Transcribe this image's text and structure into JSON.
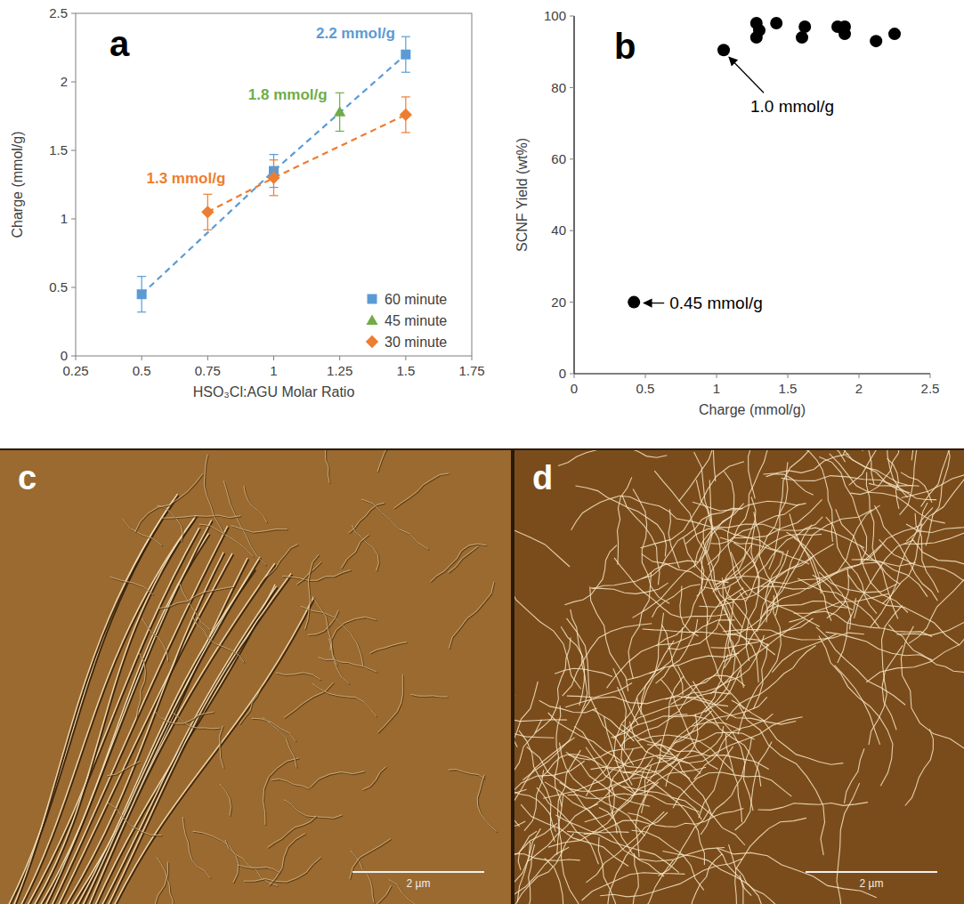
{
  "chart_data": [
    {
      "type": "scatter",
      "panel": "a",
      "xlabel": "HSO₃Cl:AGU Molar Ratio",
      "ylabel": "Charge (mmol/g)",
      "xlim": [
        0.25,
        1.75
      ],
      "xticks": [
        0.25,
        0.5,
        0.75,
        1,
        1.25,
        1.5,
        1.75
      ],
      "ylim": [
        0,
        2.5
      ],
      "yticks": [
        0,
        0.5,
        1,
        1.5,
        2,
        2.5
      ],
      "grid": false,
      "legend": "lower right",
      "series": [
        {
          "name": "60 minute",
          "color": "#5b9bd5",
          "marker": "square",
          "line_style": "dashed",
          "x": [
            0.5,
            1,
            1.5
          ],
          "values": [
            0.45,
            1.35,
            2.2
          ],
          "errors": [
            0.13,
            0.12,
            0.13
          ],
          "annotation": "2.2 mmol/g"
        },
        {
          "name": "45 minute",
          "color": "#70ad47",
          "marker": "triangle",
          "line_style": "none",
          "x": [
            1.25
          ],
          "values": [
            1.78
          ],
          "errors": [
            0.14
          ],
          "annotation": "1.8 mmol/g"
        },
        {
          "name": "30 minute",
          "color": "#ed7d31",
          "marker": "diamond",
          "line_style": "dashed",
          "x": [
            0.75,
            1,
            1.5
          ],
          "values": [
            1.05,
            1.3,
            1.76
          ],
          "errors": [
            0.13,
            0.13,
            0.13
          ],
          "annotation": "1.3 mmol/g"
        }
      ]
    },
    {
      "type": "scatter",
      "panel": "b",
      "xlabel": "Charge (mmol/g)",
      "ylabel": "SCNF Yield (wt%)",
      "xlim": [
        0,
        2.5
      ],
      "xticks": [
        0,
        0.5,
        1,
        1.5,
        2,
        2.5
      ],
      "ylim": [
        0,
        100
      ],
      "yticks": [
        0,
        20,
        40,
        60,
        80,
        100
      ],
      "grid": false,
      "color": "#000000",
      "marker": "circle",
      "x": [
        0.42,
        1.05,
        1.28,
        1.28,
        1.3,
        1.42,
        1.6,
        1.62,
        1.85,
        1.9,
        1.9,
        2.12,
        2.25
      ],
      "values": [
        20,
        90.5,
        94,
        98,
        96,
        98,
        94,
        97,
        97,
        95,
        97,
        93,
        95
      ],
      "annotations": [
        "1.0 mmol/g",
        "0.45 mmol/g"
      ]
    }
  ],
  "images": [
    {
      "panel": "c",
      "scale_bar": "2 µm"
    },
    {
      "panel": "d",
      "scale_bar": "2 µm"
    }
  ]
}
